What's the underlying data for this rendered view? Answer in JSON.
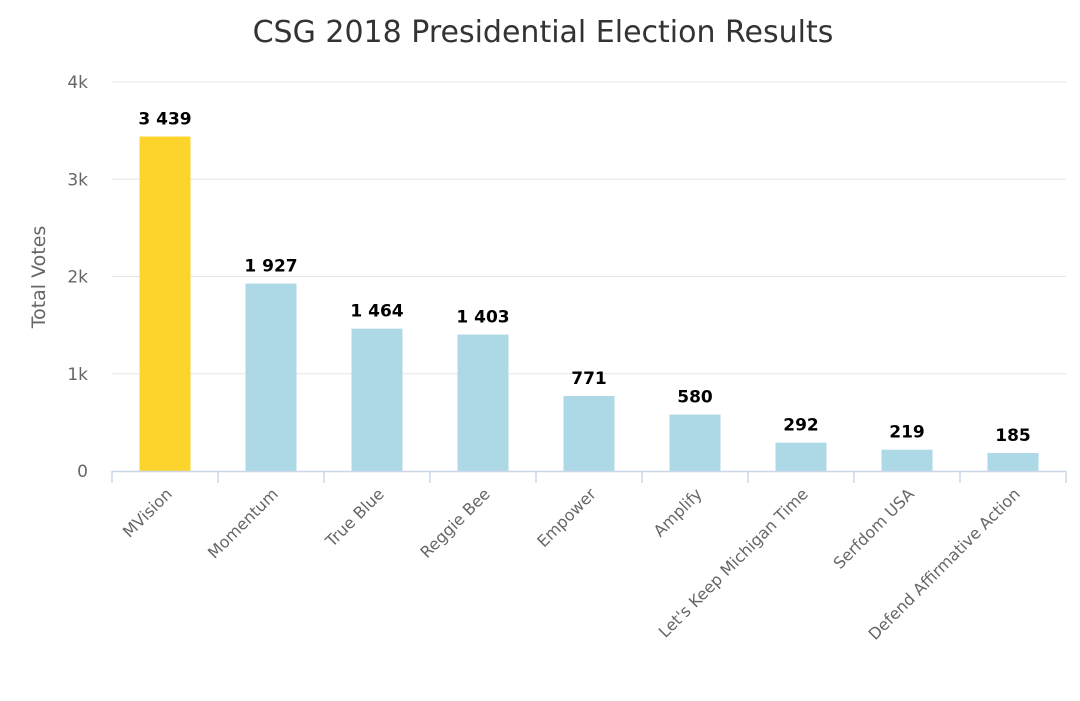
{
  "chart_data": {
    "type": "bar",
    "title": "CSG 2018 Presidential Election Results",
    "xlabel": "",
    "ylabel": "Total Votes",
    "ylim": [
      0,
      4000
    ],
    "yticks": [
      0,
      1000,
      2000,
      3000,
      4000
    ],
    "ytick_labels": [
      "0",
      "1k",
      "2k",
      "3k",
      "4k"
    ],
    "grid": true,
    "legend": "none",
    "categories": [
      "MVision",
      "Momentum",
      "True Blue",
      "Reggie Bee",
      "Empower",
      "Amplify",
      "Let's Keep Michigan Time",
      "Serfdom USA",
      "Defend Affirmative Action"
    ],
    "values": [
      3439,
      1927,
      1464,
      1403,
      771,
      580,
      292,
      219,
      185
    ],
    "data_labels": [
      "3 439",
      "1 927",
      "1 464",
      "1 403",
      "771",
      "580",
      "292",
      "219",
      "185"
    ],
    "colors": {
      "highlight": "#FDD42C",
      "default": "#ADD8E6",
      "grid": "#E6E6E6",
      "axis": "#CCD6EB",
      "title": "#333333",
      "text": "#666666"
    },
    "highlight_index": 0
  }
}
